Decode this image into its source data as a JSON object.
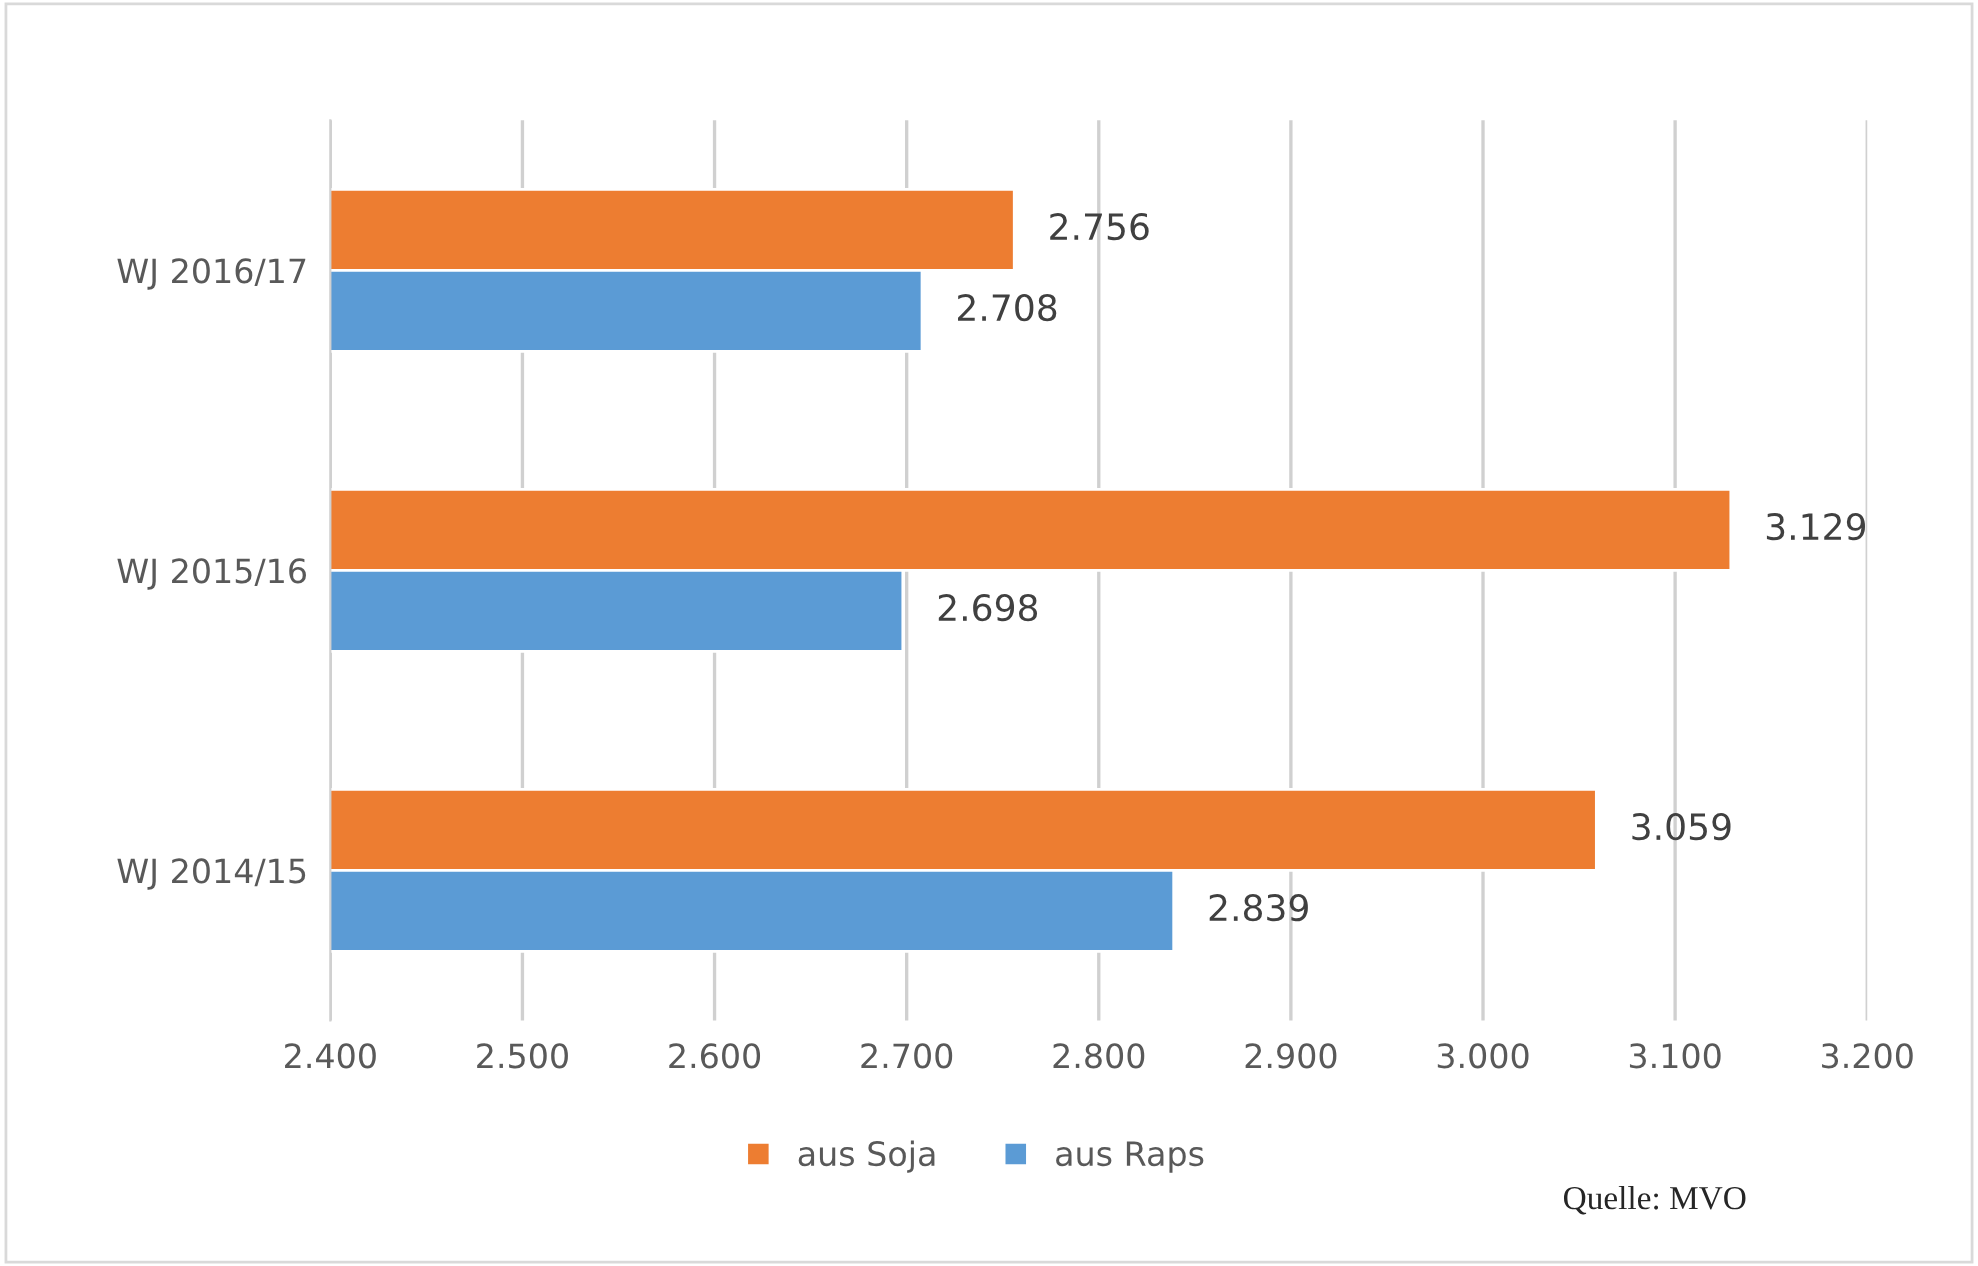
{
  "chart_data": {
    "type": "bar",
    "orientation": "horizontal",
    "categories": [
      "WJ 2016/17",
      "WJ 2015/16",
      "WJ 2014/15"
    ],
    "series": [
      {
        "name": "aus Soja",
        "color": "#ed7d31",
        "values": [
          2756,
          3129,
          3059
        ],
        "value_labels": [
          "2.756",
          "3.129",
          "3.059"
        ]
      },
      {
        "name": "aus Raps",
        "color": "#5b9bd5",
        "values": [
          2708,
          2698,
          2839
        ],
        "value_labels": [
          "2.708",
          "2.698",
          "2.839"
        ]
      }
    ],
    "xlim": [
      2400,
      3200
    ],
    "xticks": [
      {
        "value": 2400,
        "label": "2.400"
      },
      {
        "value": 2500,
        "label": "2.500"
      },
      {
        "value": 2600,
        "label": "2.600"
      },
      {
        "value": 2700,
        "label": "2.700"
      },
      {
        "value": 2800,
        "label": "2.800"
      },
      {
        "value": 2900,
        "label": "2.900"
      },
      {
        "value": 3000,
        "label": "3.000"
      },
      {
        "value": 3100,
        "label": "3.100"
      },
      {
        "value": 3200,
        "label": "3.200"
      }
    ],
    "grid": "x",
    "legend": "bottom",
    "annotations": [
      "Quelle: MVO"
    ]
  }
}
